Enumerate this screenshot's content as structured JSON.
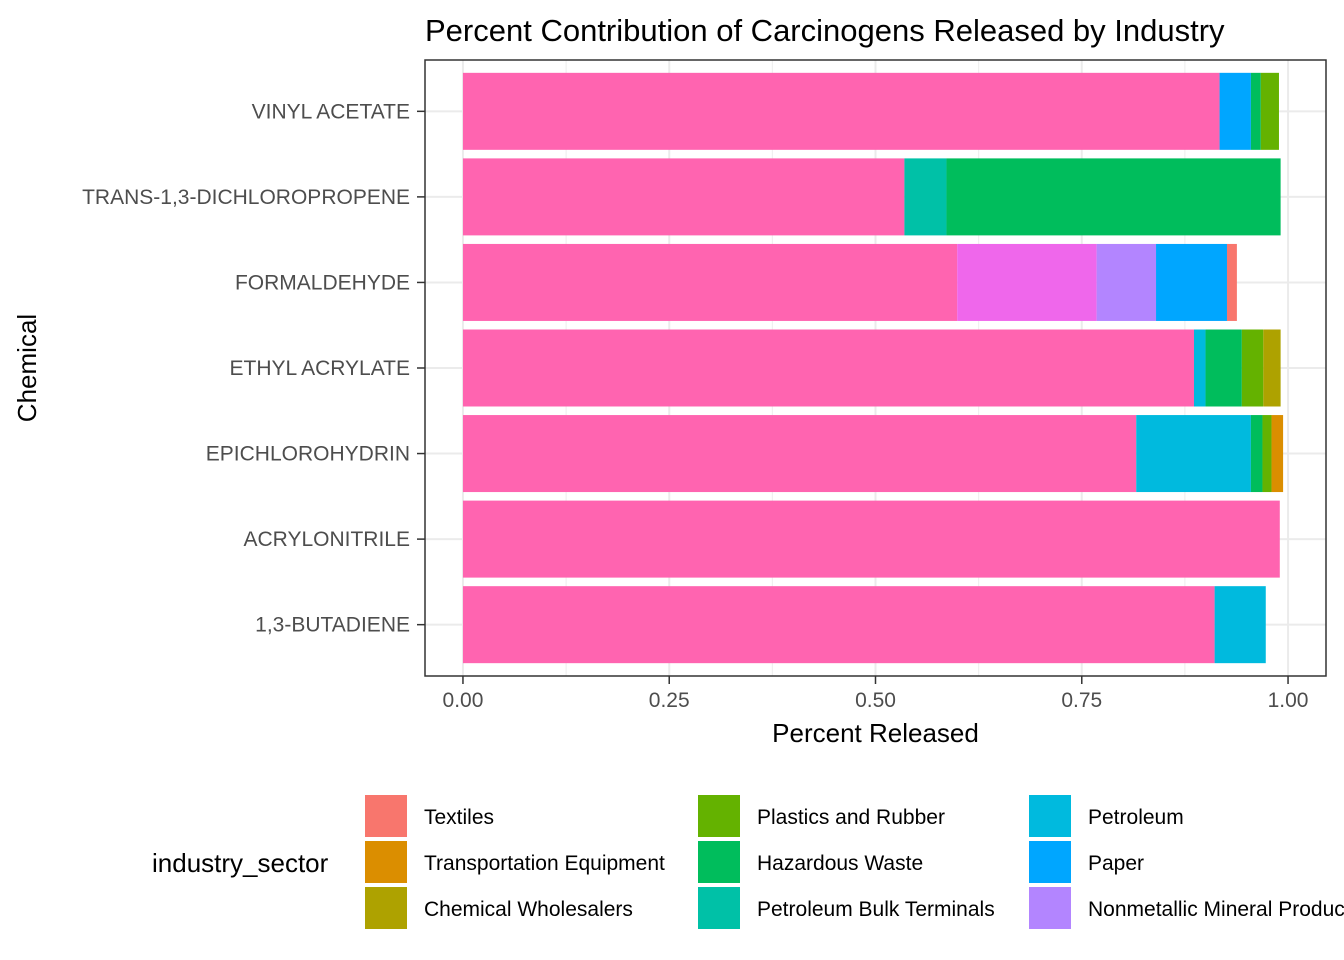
{
  "chart_data": {
    "type": "bar",
    "orientation": "horizontal",
    "stacked": true,
    "title": "Percent Contribution of Carcinogens Released by Industry",
    "xlabel": "Percent Released",
    "ylabel": "Chemical",
    "xlim": [
      -0.046,
      1.046
    ],
    "x_ticks": [
      "0.00",
      "0.25",
      "0.50",
      "0.75",
      "1.00"
    ],
    "x_tick_values": [
      0,
      0.25,
      0.5,
      0.75,
      1.0
    ],
    "grid": true,
    "legend_position": "bottom",
    "legend_title": "industry_sector",
    "categories": [
      "VINYL ACETATE",
      "TRANS-1,3-DICHLOROPROPENE",
      "FORMALDEHYDE",
      "ETHYL ACRYLATE",
      "EPICHLOROHYDRIN",
      "ACRYLONITRILE",
      "1,3-BUTADIENE"
    ],
    "legend": [
      {
        "name": "Textiles",
        "color": "#F8766D"
      },
      {
        "name": "Transportation Equipment",
        "color": "#DB8E00"
      },
      {
        "name": "Chemical Wholesalers",
        "color": "#AEA200"
      },
      {
        "name": "Plastics and Rubber",
        "color": "#64B200"
      },
      {
        "name": "Hazardous Waste",
        "color": "#00BD5C"
      },
      {
        "name": "Petroleum Bulk Terminals",
        "color": "#00C1A7"
      },
      {
        "name": "Petroleum",
        "color": "#00BADE"
      },
      {
        "name": "Paper",
        "color": "#00A6FF"
      },
      {
        "name": "Nonmetallic Mineral Products",
        "color": "#B385FF"
      }
    ],
    "series": [
      {
        "color": "#FF64B0",
        "values": [
          0.917,
          0.535,
          0.599,
          0.886,
          0.816,
          0.99,
          0.911
        ]
      },
      {
        "color": "#EF67EB",
        "values": [
          0,
          0,
          0.169,
          0,
          0,
          0,
          0
        ]
      },
      {
        "name": "Nonmetallic Mineral Products",
        "color": "#B385FF",
        "values": [
          0,
          0,
          0.072,
          0,
          0,
          0,
          0
        ]
      },
      {
        "name": "Paper",
        "color": "#00A6FF",
        "values": [
          0.038,
          0,
          0.086,
          0,
          0,
          0,
          0
        ]
      },
      {
        "name": "Petroleum",
        "color": "#00BADE",
        "values": [
          0,
          0,
          0,
          0.014,
          0.139,
          0,
          0.062
        ]
      },
      {
        "name": "Petroleum Bulk Terminals",
        "color": "#00C1A7",
        "values": [
          0,
          0.051,
          0,
          0,
          0,
          0,
          0
        ]
      },
      {
        "name": "Hazardous Waste",
        "color": "#00BD5C",
        "values": [
          0.012,
          0.405,
          0,
          0.044,
          0.014,
          0,
          0
        ]
      },
      {
        "name": "Plastics and Rubber",
        "color": "#64B200",
        "values": [
          0.022,
          0,
          0,
          0.026,
          0.011,
          0,
          0
        ]
      },
      {
        "name": "Chemical Wholesalers",
        "color": "#AEA200",
        "values": [
          0,
          0,
          0,
          0.021,
          0,
          0,
          0
        ]
      },
      {
        "name": "Transportation Equipment",
        "color": "#DB8E00",
        "values": [
          0,
          0,
          0,
          0,
          0.014,
          0,
          0
        ]
      },
      {
        "name": "Textiles",
        "color": "#F8766D",
        "values": [
          0,
          0,
          0.012,
          0,
          0,
          0,
          0
        ]
      }
    ]
  }
}
